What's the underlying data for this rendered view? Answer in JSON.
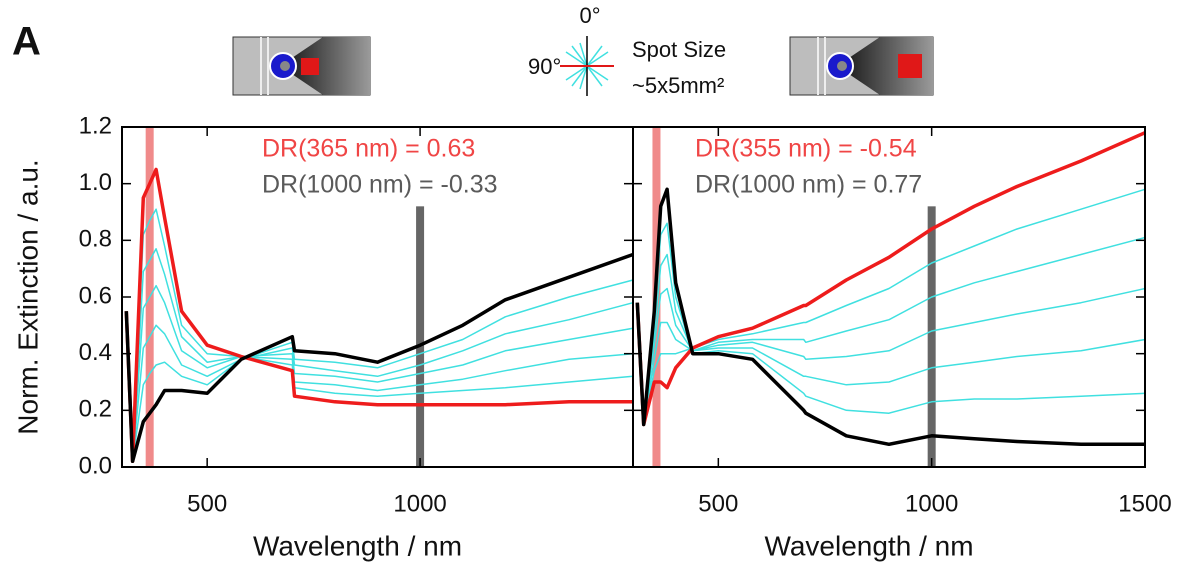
{
  "figure": {
    "panel_label": "A",
    "angle_0": "0°",
    "angle_90": "90°",
    "spot_line1": "Spot Size",
    "spot_line2": "~5x5mm²"
  },
  "chart_data": [
    {
      "type": "line",
      "ylabel": "Norm. Extinction / a.u.",
      "xlabel": "Wavelength / nm",
      "xlim": [
        300,
        1500
      ],
      "xticks": [
        500,
        1000
      ],
      "ylim": [
        0,
        1.2
      ],
      "yticks": [
        {
          "value": 0,
          "label": "0.0"
        },
        0.2,
        0.4,
        0.6,
        0.8,
        {
          "value": 1,
          "label": "1.0"
        },
        1.2
      ],
      "annotations": [
        {
          "text": "DR(365 nm) = 0.63",
          "color": "#f04545"
        },
        {
          "text": "DR(1000 nm) = -0.33",
          "color": "#5a5a5a"
        }
      ],
      "bands": [
        {
          "x": 365,
          "top": 1.2,
          "color": "#f08a8a"
        },
        {
          "x": 1000,
          "top": 0.92,
          "color": "#666666"
        }
      ],
      "x": [
        310,
        325,
        350,
        365,
        380,
        400,
        440,
        500,
        580,
        700,
        705,
        800,
        900,
        1000,
        1100,
        1200,
        1350,
        1500
      ],
      "series": [
        {
          "color": "#40e0e0",
          "values": [
            0.55,
            0.02,
            0.82,
            0.87,
            0.91,
            0.78,
            0.5,
            0.4,
            0.39,
            0.36,
            0.28,
            0.26,
            0.25,
            0.26,
            0.27,
            0.28,
            0.3,
            0.32
          ]
        },
        {
          "color": "#40e0e0",
          "values": [
            0.55,
            0.02,
            0.69,
            0.73,
            0.77,
            0.68,
            0.46,
            0.37,
            0.39,
            0.38,
            0.3,
            0.29,
            0.27,
            0.29,
            0.31,
            0.34,
            0.38,
            0.4
          ]
        },
        {
          "color": "#40e0e0",
          "values": [
            0.55,
            0.02,
            0.56,
            0.6,
            0.64,
            0.58,
            0.41,
            0.35,
            0.39,
            0.4,
            0.33,
            0.32,
            0.3,
            0.33,
            0.36,
            0.41,
            0.45,
            0.49
          ]
        },
        {
          "color": "#40e0e0",
          "values": [
            0.55,
            0.02,
            0.42,
            0.46,
            0.5,
            0.47,
            0.36,
            0.32,
            0.38,
            0.42,
            0.36,
            0.34,
            0.32,
            0.36,
            0.41,
            0.47,
            0.52,
            0.58
          ]
        },
        {
          "color": "#40e0e0",
          "values": [
            0.55,
            0.02,
            0.29,
            0.33,
            0.36,
            0.37,
            0.32,
            0.29,
            0.38,
            0.44,
            0.38,
            0.37,
            0.35,
            0.4,
            0.45,
            0.53,
            0.6,
            0.66
          ]
        },
        {
          "color": "#ee1c1c",
          "values": [
            0.55,
            0.02,
            0.95,
            1.0,
            1.05,
            0.88,
            0.55,
            0.43,
            0.39,
            0.34,
            0.25,
            0.23,
            0.22,
            0.22,
            0.22,
            0.22,
            0.23,
            0.23
          ]
        },
        {
          "color": "#000000",
          "values": [
            0.55,
            0.02,
            0.16,
            0.19,
            0.22,
            0.27,
            0.27,
            0.26,
            0.38,
            0.46,
            0.41,
            0.4,
            0.37,
            0.43,
            0.5,
            0.59,
            0.67,
            0.75
          ]
        }
      ]
    },
    {
      "type": "line",
      "xlabel": "Wavelength / nm",
      "xlim": [
        300,
        1500
      ],
      "xticks": [
        500,
        1000,
        1500
      ],
      "ylim": [
        0,
        1.2
      ],
      "yticks": [
        {
          "value": 0,
          "label": "0.0"
        },
        0.2,
        0.4,
        0.6,
        0.8,
        {
          "value": 1,
          "label": "1.0"
        },
        1.2
      ],
      "annotations": [
        {
          "text": "DR(355 nm) = -0.54",
          "color": "#f04545"
        },
        {
          "text": "DR(1000 nm) = 0.77",
          "color": "#5a5a5a"
        }
      ],
      "bands": [
        {
          "x": 355,
          "top": 1.2,
          "color": "#f08a8a"
        },
        {
          "x": 1000,
          "top": 0.92,
          "color": "#666666"
        }
      ],
      "x": [
        310,
        325,
        350,
        365,
        380,
        400,
        440,
        500,
        580,
        700,
        705,
        800,
        900,
        1000,
        1100,
        1200,
        1350,
        1500
      ],
      "series": [
        {
          "color": "#40e0e0",
          "values": [
            0.58,
            0.15,
            0.34,
            0.4,
            0.4,
            0.4,
            0.42,
            0.45,
            0.47,
            0.51,
            0.51,
            0.57,
            0.63,
            0.72,
            0.78,
            0.84,
            0.91,
            0.98
          ]
        },
        {
          "color": "#40e0e0",
          "values": [
            0.58,
            0.15,
            0.38,
            0.51,
            0.51,
            0.45,
            0.41,
            0.44,
            0.45,
            0.45,
            0.44,
            0.48,
            0.52,
            0.6,
            0.65,
            0.69,
            0.75,
            0.81
          ]
        },
        {
          "color": "#40e0e0",
          "values": [
            0.58,
            0.15,
            0.43,
            0.61,
            0.63,
            0.5,
            0.41,
            0.43,
            0.44,
            0.39,
            0.38,
            0.39,
            0.41,
            0.48,
            0.51,
            0.54,
            0.58,
            0.63
          ]
        },
        {
          "color": "#40e0e0",
          "values": [
            0.58,
            0.15,
            0.47,
            0.71,
            0.75,
            0.55,
            0.41,
            0.42,
            0.42,
            0.32,
            0.32,
            0.29,
            0.3,
            0.35,
            0.37,
            0.39,
            0.41,
            0.45
          ]
        },
        {
          "color": "#40e0e0",
          "values": [
            0.58,
            0.15,
            0.51,
            0.82,
            0.86,
            0.6,
            0.4,
            0.41,
            0.4,
            0.26,
            0.25,
            0.2,
            0.19,
            0.23,
            0.24,
            0.24,
            0.25,
            0.26
          ]
        },
        {
          "color": "#ee1c1c",
          "values": [
            0.58,
            0.15,
            0.3,
            0.3,
            0.28,
            0.35,
            0.42,
            0.46,
            0.49,
            0.57,
            0.57,
            0.66,
            0.74,
            0.84,
            0.92,
            0.99,
            1.08,
            1.18
          ]
        },
        {
          "color": "#000000",
          "values": [
            0.58,
            0.15,
            0.55,
            0.92,
            0.98,
            0.65,
            0.4,
            0.4,
            0.38,
            0.2,
            0.19,
            0.11,
            0.08,
            0.11,
            0.1,
            0.09,
            0.08,
            0.08
          ]
        }
      ]
    }
  ]
}
